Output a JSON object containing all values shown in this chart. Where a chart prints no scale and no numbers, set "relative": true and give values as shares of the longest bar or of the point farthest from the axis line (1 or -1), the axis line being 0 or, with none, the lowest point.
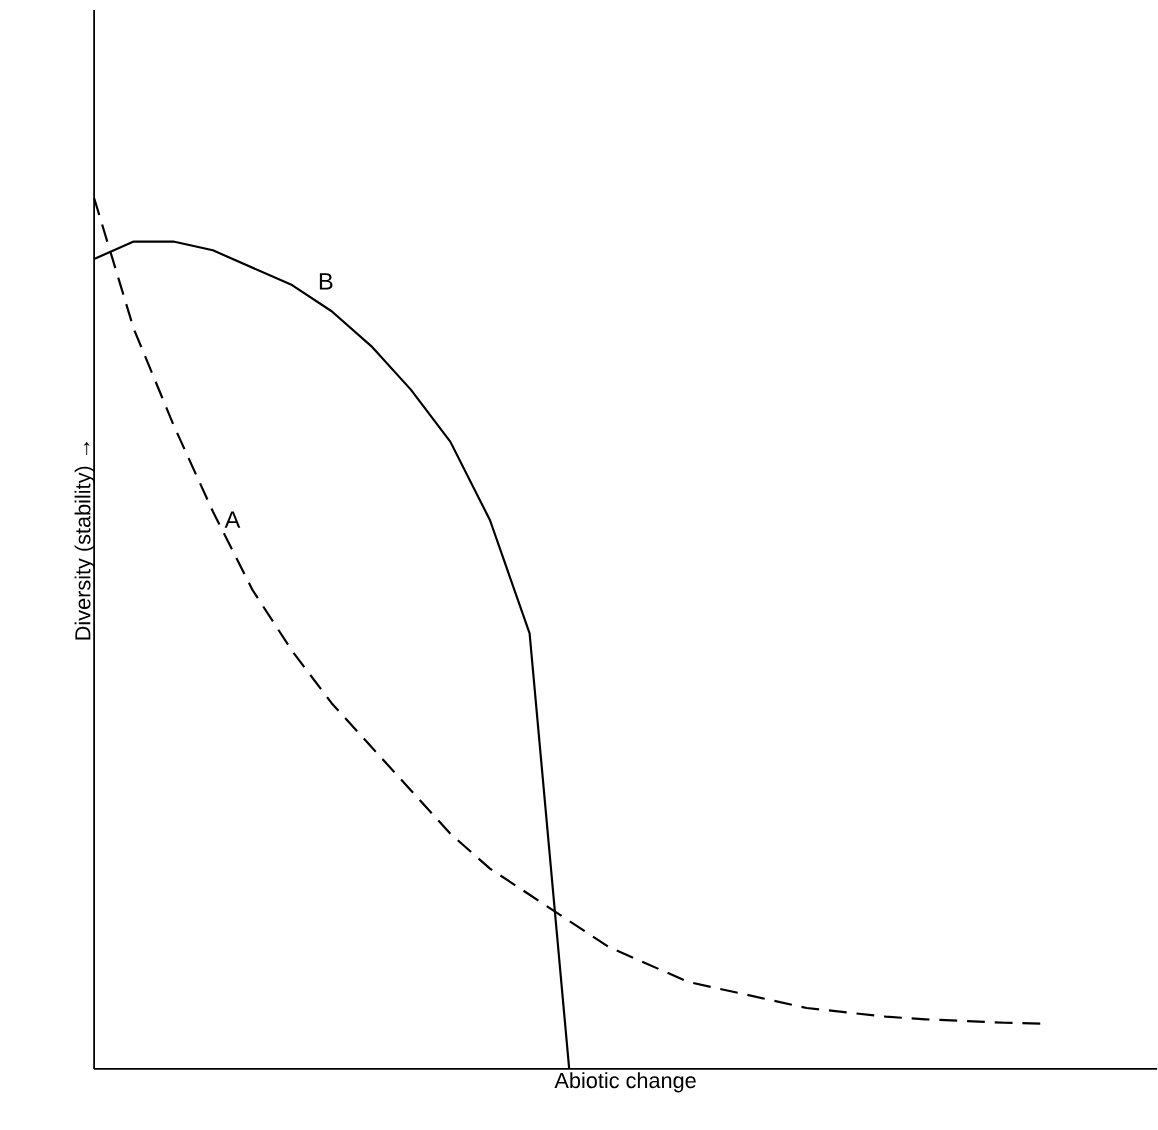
{
  "chart_data": {
    "type": "line",
    "relative": true,
    "legend": false,
    "xlabel": "Abiotic change",
    "ylabel": "Diversity (stability) →",
    "categories": [
      null,
      null,
      null,
      null,
      null,
      null,
      null,
      null,
      null,
      null,
      null,
      null,
      null,
      null,
      null,
      null,
      null,
      null,
      null,
      null,
      null,
      null,
      null,
      null,
      null
    ],
    "series": [
      {
        "name": "A",
        "color": "#000000",
        "line_style": "dashed",
        "values": [
          1.0,
          0.85,
          0.74,
          0.64,
          0.55,
          0.48,
          0.42,
          0.37,
          0.32,
          0.27,
          0.23,
          0.2,
          0.17,
          0.14,
          0.12,
          0.1,
          0.09,
          0.08,
          0.07,
          0.065,
          0.06,
          0.057,
          0.055,
          0.053,
          0.052
        ]
      },
      {
        "name": "B",
        "color": "#000000",
        "line_style": "solid",
        "values": [
          0.93,
          0.95,
          0.95,
          0.94,
          0.92,
          0.9,
          0.87,
          0.83,
          0.78,
          0.72,
          0.63,
          0.5,
          0.0,
          null,
          null,
          null,
          null,
          null,
          null,
          null,
          null,
          null,
          null,
          null,
          null
        ]
      }
    ]
  }
}
